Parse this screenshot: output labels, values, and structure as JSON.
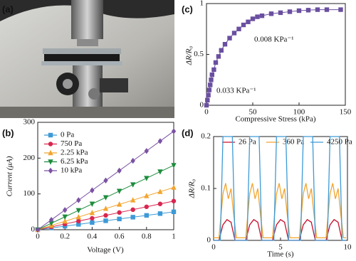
{
  "photo": {
    "panel_label": "(a)"
  },
  "chart_data": [
    {
      "type": "line",
      "panel_label": "(b)",
      "xlabel": "Voltage (V)",
      "ylabel": "Current (μA)",
      "xlim": [
        0,
        1
      ],
      "ylim": [
        0,
        300
      ],
      "xticks": [
        0,
        0.2,
        0.4,
        0.6,
        0.8,
        1
      ],
      "yticks": [
        0,
        100,
        200,
        300
      ],
      "legend": "upper left",
      "x": [
        0,
        0.1,
        0.2,
        0.3,
        0.4,
        0.5,
        0.6,
        0.7,
        0.8,
        0.9,
        1
      ],
      "series": [
        {
          "name": "0 Pa",
          "color": "#3d9ad6",
          "marker": "square",
          "values": [
            0,
            5,
            10,
            15,
            20,
            25,
            30,
            35,
            40,
            45,
            50
          ]
        },
        {
          "name": "750 Pa",
          "color": "#d8264f",
          "marker": "circle",
          "values": [
            0,
            8,
            16,
            24,
            32,
            40,
            48,
            56,
            64,
            72,
            80
          ]
        },
        {
          "name": "2.25 kPa",
          "color": "#f2a52e",
          "marker": "triangle-up",
          "values": [
            0,
            11.8,
            23.6,
            35.4,
            47.2,
            59,
            70.8,
            82.6,
            94.4,
            106.2,
            118
          ]
        },
        {
          "name": "6.25 kPa",
          "color": "#1c8c3c",
          "marker": "triangle-down",
          "values": [
            0,
            18,
            36,
            54,
            72,
            90,
            108,
            126,
            144,
            162,
            180
          ]
        },
        {
          "name": "10 kPa",
          "color": "#7b52a3",
          "marker": "diamond",
          "values": [
            0,
            27.5,
            55,
            82.5,
            110,
            137.5,
            165,
            192.5,
            220,
            247.5,
            275
          ]
        }
      ]
    },
    {
      "type": "line",
      "panel_label": "(c)",
      "xlabel": "Compressive Stress (kPa)",
      "ylabel": "ΔR/R₀",
      "xlim": [
        0,
        150
      ],
      "ylim": [
        0,
        1
      ],
      "xticks": [
        0,
        50,
        100,
        150
      ],
      "yticks": [
        0,
        0.5,
        1
      ],
      "x": [
        0,
        1,
        2,
        3,
        4,
        5,
        6,
        8,
        10,
        13,
        16,
        20,
        25,
        30,
        35,
        40,
        45,
        50,
        55,
        60,
        70,
        80,
        90,
        100,
        110,
        120,
        130,
        145
      ],
      "series": [
        {
          "color": "#6a4fa0",
          "marker": "square",
          "values": [
            0,
            0.05,
            0.1,
            0.15,
            0.2,
            0.25,
            0.3,
            0.35,
            0.42,
            0.48,
            0.54,
            0.6,
            0.66,
            0.71,
            0.75,
            0.79,
            0.82,
            0.85,
            0.87,
            0.88,
            0.9,
            0.91,
            0.92,
            0.93,
            0.935,
            0.94,
            0.94,
            0.94
          ]
        }
      ],
      "annotations": [
        {
          "text": "0.008 KPa⁻¹",
          "color": "#3f7fc0"
        },
        {
          "text": "0.033 KPa⁻¹",
          "color": "#f0a830"
        }
      ]
    },
    {
      "type": "line",
      "panel_label": "(d)",
      "xlabel": "Time (s)",
      "ylabel": "ΔR/R₀",
      "xlim": [
        0,
        10
      ],
      "ylim": [
        0,
        0.2
      ],
      "xticks": [
        0,
        5,
        10
      ],
      "yticks": [
        0,
        0.1,
        0.2
      ],
      "legend": "top",
      "series": [
        {
          "name": "26 Pa",
          "color": "#c8102e",
          "x": [
            0,
            0.4,
            0.7,
            1,
            1.3,
            1.6,
            2.4,
            2.7,
            3,
            3.3,
            3.6,
            4.4,
            4.7,
            5,
            5.3,
            5.6,
            6.4,
            6.7,
            7,
            7.3,
            7.6,
            8.4,
            8.7,
            9,
            9.3,
            9.6,
            9.9
          ],
          "values": [
            0,
            0,
            0.03,
            0.04,
            0.035,
            0,
            0,
            0.03,
            0.04,
            0.035,
            0,
            0,
            0.03,
            0.04,
            0.035,
            0,
            0,
            0.03,
            0.04,
            0.035,
            0,
            0,
            0.03,
            0.04,
            0.035,
            0,
            0
          ]
        },
        {
          "name": "360 Pa",
          "color": "#f2a52e",
          "x": [
            0,
            0.4,
            0.7,
            0.9,
            1.1,
            1.3,
            1.5,
            1.7,
            2.4,
            2.7,
            2.9,
            3.1,
            3.3,
            3.5,
            3.7,
            4.4,
            4.7,
            4.9,
            5.1,
            5.3,
            5.5,
            5.7,
            6.4,
            6.7,
            6.9,
            7.1,
            7.3,
            7.5,
            7.7,
            8.4,
            8.7,
            8.9,
            9.1,
            9.3,
            9.5,
            9.7,
            9.9
          ],
          "values": [
            0.005,
            0.005,
            0.09,
            0.11,
            0.08,
            0.1,
            0.05,
            0.005,
            0.005,
            0.09,
            0.11,
            0.08,
            0.1,
            0.05,
            0.005,
            0.005,
            0.09,
            0.11,
            0.08,
            0.1,
            0.05,
            0.005,
            0.005,
            0.09,
            0.11,
            0.08,
            0.1,
            0.05,
            0.005,
            0.005,
            0.09,
            0.11,
            0.08,
            0.1,
            0.05,
            0.005,
            0.005
          ]
        },
        {
          "name": "4250 Pa",
          "color": "#3d9ad6",
          "x": [
            0,
            0.5,
            0.7,
            1.4,
            1.6,
            2.5,
            2.7,
            3.4,
            3.6,
            4.5,
            4.7,
            5.4,
            5.6,
            6.5,
            6.7,
            7.4,
            7.6,
            8.5,
            8.7,
            9.4,
            9.6,
            9.9
          ],
          "values": [
            0,
            0,
            0.2,
            0.2,
            0,
            0,
            0.2,
            0.2,
            0,
            0,
            0.2,
            0.2,
            0,
            0,
            0.2,
            0.2,
            0,
            0,
            0.2,
            0.2,
            0,
            0
          ]
        }
      ]
    }
  ]
}
